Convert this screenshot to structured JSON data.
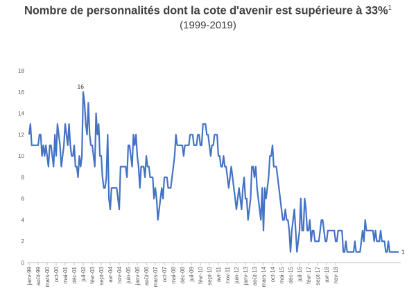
{
  "header": {
    "title": "Nombre de personnalités dont la cote d'avenir est supérieure à 33%",
    "title_footnote": "1",
    "subtitle": "(1999-2019)"
  },
  "chart_data": {
    "type": "line",
    "title": "Nombre de personnalités dont la cote d'avenir est supérieure à 33%",
    "subtitle": "(1999-2019)",
    "xlabel": "",
    "ylabel": "",
    "ylim": [
      0,
      18
    ],
    "yticks": [
      0,
      2,
      4,
      6,
      8,
      10,
      12,
      14,
      16,
      18
    ],
    "grid": false,
    "legend": "none",
    "line_color": "#4472C4",
    "x_start": "janv-99",
    "x_end": "juin-19",
    "x_tick_labels": [
      "janv-99",
      "août-99",
      "mars-00",
      "oct-00",
      "mai-01",
      "déc-01",
      "juil-02",
      "févr-03",
      "sept-03",
      "avr-04",
      "nov-04",
      "juin-05",
      "janv-06",
      "août-06",
      "mars-07",
      "oct-07",
      "mai-08",
      "déc-08",
      "juil-09",
      "févr-10",
      "sept-10",
      "avr-11",
      "nov-11",
      "juin-12",
      "janv-13",
      "août-13",
      "mars-14",
      "oct-14",
      "mai-15",
      "déc-15",
      "juil-16",
      "févr-17",
      "sept-17",
      "avr-18",
      "nov-18"
    ],
    "data_labels": [
      {
        "x": "mai-02",
        "y": 16,
        "text": "16"
      },
      {
        "x": "juin-19",
        "y": 1,
        "text": "1"
      }
    ],
    "series": [
      {
        "values": [
          12,
          13,
          11,
          11,
          11,
          11,
          11,
          11,
          12,
          12,
          10,
          11,
          10,
          11,
          10,
          9,
          11,
          11,
          10,
          9,
          12,
          10,
          13,
          12,
          11,
          9,
          10,
          11,
          13,
          12,
          11,
          13,
          11,
          10,
          10,
          11,
          9,
          9,
          8,
          10,
          9,
          10,
          16,
          15,
          13,
          12,
          15,
          12,
          11,
          11,
          10,
          9,
          14,
          12,
          13,
          10,
          10,
          8,
          7,
          7,
          8,
          12,
          6,
          5,
          7,
          7,
          7,
          7,
          7,
          6,
          5,
          9,
          9,
          9,
          9,
          9,
          8,
          11,
          11,
          10,
          9,
          12,
          11,
          12,
          10,
          9,
          7,
          9,
          9,
          9,
          8,
          10,
          9,
          9,
          8,
          8,
          8,
          6,
          7,
          6,
          4,
          5,
          6,
          7,
          6,
          8,
          8,
          8,
          7,
          7,
          7,
          8,
          9,
          10,
          12,
          11,
          11,
          11,
          11,
          11,
          10,
          11,
          11,
          11,
          11,
          12,
          12,
          12,
          11,
          11,
          11,
          12,
          12,
          11,
          11,
          13,
          13,
          13,
          12,
          12,
          11,
          10,
          11,
          11,
          12,
          12,
          12,
          10,
          10,
          9,
          9,
          10,
          9,
          9,
          8,
          7,
          8,
          9,
          8,
          7,
          6,
          5,
          6,
          7,
          6,
          5,
          7,
          8,
          6,
          6,
          4,
          5,
          6,
          9,
          9,
          8,
          9,
          7,
          6,
          5,
          4,
          7,
          3,
          7,
          6,
          7,
          8,
          10,
          10,
          11,
          9,
          9,
          9,
          8,
          7,
          6,
          5,
          4,
          4,
          5,
          4,
          4,
          3,
          1,
          3,
          4,
          5,
          3,
          1,
          2,
          3,
          6,
          3,
          3,
          6,
          5,
          3,
          3,
          4,
          2,
          3,
          3,
          2,
          2,
          2,
          2,
          3,
          4,
          4,
          3,
          2,
          2,
          3,
          3,
          3,
          3,
          3,
          3,
          2,
          2,
          3,
          3,
          3,
          3,
          1,
          1,
          2,
          1,
          1,
          1,
          1,
          1,
          1,
          2,
          1,
          1,
          1,
          1,
          2,
          3,
          2,
          4,
          3,
          3,
          3,
          3,
          3,
          3,
          2,
          3,
          2,
          2,
          2,
          3,
          2,
          2,
          2,
          1,
          1,
          2,
          1,
          1,
          1,
          1,
          1,
          1,
          1,
          1
        ]
      }
    ]
  }
}
